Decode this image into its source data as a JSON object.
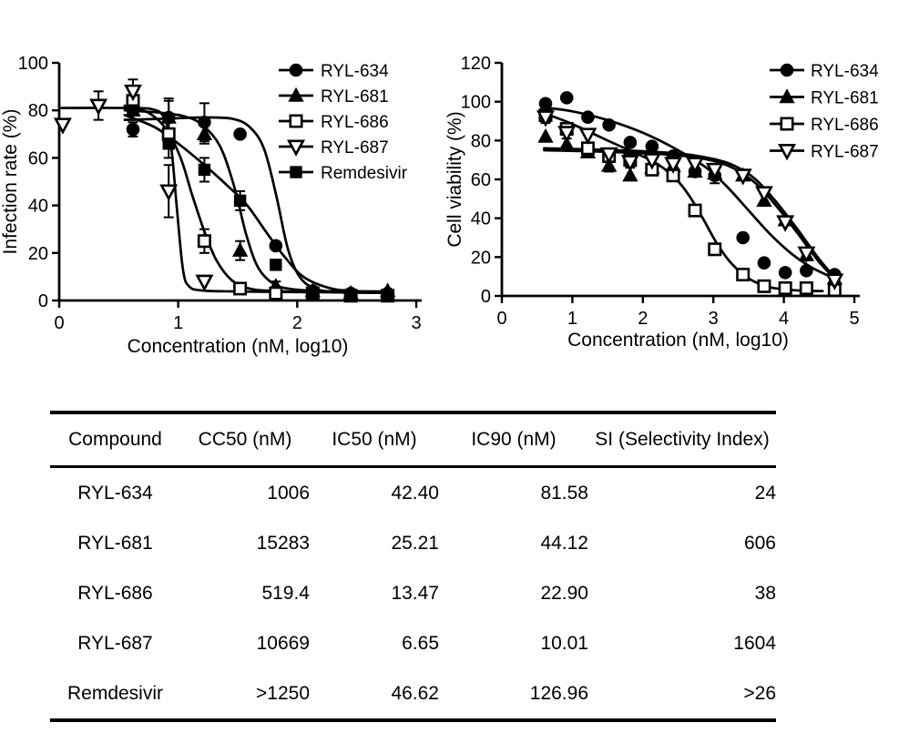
{
  "figure": {
    "background": "#ffffff",
    "ink": "#000000"
  },
  "chart_data": [
    {
      "type": "scatter",
      "title": "",
      "xlabel": "Concentration (nM, log10)",
      "ylabel": "Infection rate (%)",
      "xlim": [
        0,
        3
      ],
      "ylim": [
        0,
        100
      ],
      "xticks": [
        0,
        1,
        2,
        3
      ],
      "yticks": [
        0,
        20,
        40,
        60,
        80,
        100
      ],
      "grid": false,
      "legend_position": "top-right",
      "series": [
        {
          "name": "RYL-634",
          "marker": "circle",
          "filled": true,
          "x": [
            0.62,
            0.92,
            1.22,
            1.52,
            1.82,
            2.13,
            2.45,
            2.76
          ],
          "y": [
            72,
            77,
            75,
            70,
            23,
            4,
            3,
            3
          ],
          "err": [
            3,
            7,
            8,
            0,
            0,
            0,
            0,
            0
          ],
          "curve": [
            [
              0.55,
              76
            ],
            [
              0.9,
              76.5
            ],
            [
              1.2,
              77
            ],
            [
              1.45,
              76.5
            ],
            [
              1.6,
              73
            ],
            [
              1.72,
              64
            ],
            [
              1.82,
              45
            ],
            [
              1.92,
              22
            ],
            [
              2.02,
              10
            ],
            [
              2.15,
              5
            ],
            [
              2.35,
              3.5
            ],
            [
              2.78,
              3.2
            ]
          ]
        },
        {
          "name": "RYL-681",
          "marker": "triangle",
          "filled": true,
          "x": [
            0.62,
            0.92,
            1.22,
            1.52,
            1.82,
            2.13,
            2.45,
            2.76
          ],
          "y": [
            80,
            77,
            70,
            21,
            6,
            4,
            3,
            4
          ],
          "err": [
            4,
            8,
            4,
            4,
            2,
            0,
            0,
            0
          ],
          "curve": [
            [
              0.55,
              80
            ],
            [
              0.85,
              79
            ],
            [
              1.05,
              77.5
            ],
            [
              1.2,
              74
            ],
            [
              1.35,
              65
            ],
            [
              1.47,
              48
            ],
            [
              1.57,
              28
            ],
            [
              1.67,
              14
            ],
            [
              1.8,
              7
            ],
            [
              1.95,
              4.8
            ],
            [
              2.2,
              4
            ],
            [
              2.78,
              3.8
            ]
          ]
        },
        {
          "name": "RYL-686",
          "marker": "square",
          "filled": false,
          "x": [
            0.62,
            0.92,
            1.22,
            1.52,
            1.82,
            2.13,
            2.45,
            2.76
          ],
          "y": [
            84,
            70,
            25,
            5,
            3,
            3,
            2,
            2
          ],
          "err": [
            4,
            5,
            5,
            1,
            0,
            0,
            0,
            0
          ],
          "curve": [
            [
              0.55,
              82
            ],
            [
              0.75,
              79
            ],
            [
              0.9,
              72
            ],
            [
              1.02,
              60
            ],
            [
              1.12,
              44
            ],
            [
              1.22,
              29
            ],
            [
              1.32,
              17
            ],
            [
              1.45,
              8.5
            ],
            [
              1.6,
              5
            ],
            [
              1.8,
              4
            ],
            [
              2.2,
              3.5
            ],
            [
              2.78,
              3.2
            ]
          ]
        },
        {
          "name": "RYL-687",
          "marker": "triangle-down",
          "filled": false,
          "x": [
            0.03,
            0.33,
            0.62,
            0.92,
            1.22
          ],
          "y": [
            74,
            82,
            88,
            46,
            8
          ],
          "err": [
            0,
            6,
            5,
            11,
            0
          ],
          "curve": [
            [
              0.02,
              81
            ],
            [
              0.55,
              81
            ],
            [
              0.78,
              80.5
            ],
            [
              0.88,
              77
            ],
            [
              0.94,
              65
            ],
            [
              0.99,
              38
            ],
            [
              1.04,
              13
            ],
            [
              1.09,
              6
            ],
            [
              1.2,
              4.2
            ],
            [
              1.5,
              3.8
            ],
            [
              2.1,
              3.5
            ]
          ]
        },
        {
          "name": "Remdesivir",
          "marker": "square",
          "filled": true,
          "x": [
            0.62,
            0.92,
            1.22,
            1.52,
            1.82,
            2.13,
            2.45,
            2.76
          ],
          "y": [
            80,
            66,
            55,
            42,
            15,
            3,
            2,
            2
          ],
          "err": [
            4,
            6,
            5,
            4,
            2,
            0,
            0,
            0
          ],
          "curve": [
            [
              0.55,
              78
            ],
            [
              0.8,
              73
            ],
            [
              1.0,
              66
            ],
            [
              1.22,
              57
            ],
            [
              1.42,
              48
            ],
            [
              1.58,
              40
            ],
            [
              1.75,
              28
            ],
            [
              1.9,
              18
            ],
            [
              2.05,
              10
            ],
            [
              2.25,
              5.5
            ],
            [
              2.45,
              4
            ],
            [
              2.78,
              3.5
            ]
          ]
        }
      ]
    },
    {
      "type": "scatter",
      "title": "",
      "xlabel": "Concentration (nM, log10)",
      "ylabel": "Cell viability (%)",
      "xlim": [
        0,
        5
      ],
      "ylim": [
        0,
        120
      ],
      "xticks": [
        0,
        1,
        2,
        3,
        4,
        5
      ],
      "yticks": [
        0,
        20,
        40,
        60,
        80,
        100,
        120
      ],
      "grid": false,
      "legend_position": "top-right",
      "series": [
        {
          "name": "RYL-634",
          "marker": "circle",
          "filled": true,
          "x": [
            0.62,
            0.92,
            1.22,
            1.52,
            1.82,
            2.13,
            2.43,
            2.74,
            3.02,
            3.42,
            3.72,
            4.02,
            4.32,
            4.72
          ],
          "y": [
            99,
            102,
            92,
            88,
            79,
            77,
            72,
            64,
            62,
            30,
            17,
            12,
            13,
            11
          ],
          "err": [
            0,
            0,
            0,
            0,
            0,
            0,
            0,
            0,
            4,
            0,
            0,
            0,
            0,
            0
          ],
          "curve": [
            [
              0.6,
              97
            ],
            [
              1.0,
              95
            ],
            [
              1.5,
              90.5
            ],
            [
              2.0,
              84
            ],
            [
              2.5,
              75
            ],
            [
              2.9,
              66
            ],
            [
              3.2,
              56
            ],
            [
              3.5,
              44
            ],
            [
              3.8,
              32
            ],
            [
              4.1,
              22
            ],
            [
              4.4,
              14.5
            ],
            [
              4.75,
              8.5
            ]
          ]
        },
        {
          "name": "RYL-681",
          "marker": "triangle",
          "filled": true,
          "x": [
            0.62,
            0.92,
            1.22,
            1.52,
            1.82,
            2.13,
            2.43,
            2.74,
            3.02,
            3.42,
            3.72,
            4.02,
            4.32,
            4.72
          ],
          "y": [
            82,
            78,
            74,
            67,
            62,
            66,
            67,
            64,
            63,
            62,
            49,
            39,
            21,
            9
          ],
          "err": [
            0,
            3,
            0,
            3,
            0,
            0,
            0,
            0,
            3,
            0,
            0,
            0,
            0,
            0
          ],
          "curve": [
            [
              0.6,
              76
            ],
            [
              1.2,
              75.5
            ],
            [
              2.0,
              74.5
            ],
            [
              2.6,
              73
            ],
            [
              3.0,
              70.5
            ],
            [
              3.3,
              67
            ],
            [
              3.6,
              60
            ],
            [
              3.9,
              48
            ],
            [
              4.2,
              34
            ],
            [
              4.5,
              19
            ],
            [
              4.78,
              7
            ]
          ]
        },
        {
          "name": "RYL-686",
          "marker": "square",
          "filled": false,
          "x": [
            0.62,
            0.92,
            1.22,
            1.52,
            1.82,
            2.13,
            2.43,
            2.74,
            3.02,
            3.42,
            3.72,
            4.02,
            4.32,
            4.72
          ],
          "y": [
            93,
            86,
            76,
            72,
            70,
            65,
            62,
            44,
            24,
            11,
            5,
            4,
            4,
            3
          ],
          "err": [
            3,
            0,
            0,
            3,
            0,
            0,
            0,
            0,
            0,
            0,
            0,
            0,
            0,
            0
          ],
          "curve": [
            [
              0.6,
              94
            ],
            [
              1.0,
              88.5
            ],
            [
              1.5,
              80
            ],
            [
              1.9,
              73.5
            ],
            [
              2.2,
              68
            ],
            [
              2.45,
              61
            ],
            [
              2.65,
              52
            ],
            [
              2.85,
              40
            ],
            [
              3.05,
              27
            ],
            [
              3.25,
              17
            ],
            [
              3.5,
              9
            ],
            [
              3.8,
              4.5
            ],
            [
              4.2,
              2.8
            ],
            [
              4.55,
              2.5
            ]
          ]
        },
        {
          "name": "RYL-687",
          "marker": "triangle-down",
          "filled": false,
          "x": [
            0.62,
            0.92,
            1.22,
            1.52,
            1.82,
            2.13,
            2.43,
            2.74,
            3.02,
            3.42,
            3.72,
            4.02,
            4.32,
            4.72
          ],
          "y": [
            92,
            84,
            83,
            73,
            69,
            70,
            68,
            68,
            65,
            62,
            53,
            38,
            22,
            8
          ],
          "err": [
            3,
            0,
            0,
            0,
            3,
            0,
            0,
            0,
            0,
            0,
            0,
            0,
            0,
            0
          ],
          "curve": [
            [
              0.6,
              75
            ],
            [
              1.2,
              74.5
            ],
            [
              2.0,
              73.5
            ],
            [
              2.6,
              72
            ],
            [
              3.0,
              69.5
            ],
            [
              3.3,
              65.5
            ],
            [
              3.6,
              58
            ],
            [
              3.9,
              46
            ],
            [
              4.2,
              32
            ],
            [
              4.5,
              17.5
            ],
            [
              4.78,
              6.5
            ]
          ]
        }
      ]
    }
  ],
  "table": {
    "headers": [
      "Compound",
      "CC50 (nM)",
      "IC50 (nM)",
      "IC90 (nM)",
      "SI (Selectivity Index)"
    ],
    "rows": [
      [
        "RYL-634",
        "1006",
        "42.40",
        "81.58",
        "24"
      ],
      [
        "RYL-681",
        "15283",
        "25.21",
        "44.12",
        "606"
      ],
      [
        "RYL-686",
        "519.4",
        "13.47",
        "22.90",
        "38"
      ],
      [
        "RYL-687",
        "10669",
        "6.65",
        "10.01",
        "1604"
      ],
      [
        "Remdesivir",
        ">1250",
        "46.62",
        "126.96",
        ">26"
      ]
    ]
  }
}
